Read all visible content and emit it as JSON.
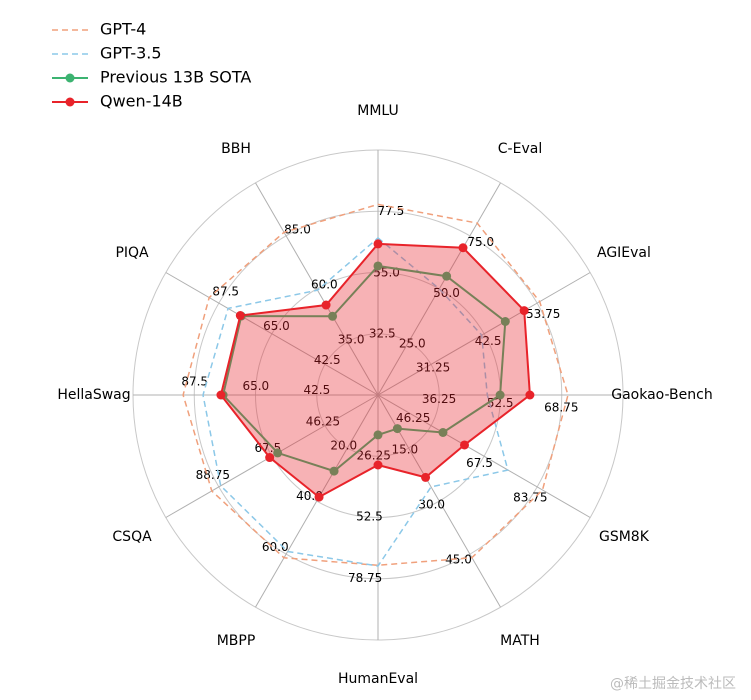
{
  "chart_data": {
    "type": "radar",
    "categories": [
      "MMLU",
      "C-Eval",
      "AGIEval",
      "Gaokao-Bench",
      "GSM8K",
      "MATH",
      "HumanEval",
      "MBPP",
      "CSQA",
      "HellaSwag",
      "PIQA",
      "BBH"
    ],
    "axes": [
      {
        "lim": [
          10,
          100
        ],
        "ticks": [
          32.5,
          {
            "value": 55,
            "label": "55.0"
          },
          77.5
        ]
      },
      {
        "lim": [
          0,
          100
        ],
        "ticks": [
          {
            "value": 25,
            "label": "25.0"
          },
          {
            "value": 50,
            "label": "50.0"
          },
          {
            "value": 75,
            "label": "75.0"
          }
        ]
      },
      {
        "lim": [
          20,
          65
        ],
        "ticks": [
          31.25,
          42.5,
          53.75
        ]
      },
      {
        "lim": [
          20,
          85
        ],
        "ticks": [
          36.25,
          52.5,
          68.75
        ]
      },
      {
        "lim": [
          35,
          100
        ],
        "ticks": [
          46.25,
          67.5,
          83.75
        ]
      },
      {
        "lim": [
          0,
          60
        ],
        "ticks": [
          {
            "value": 15,
            "label": "15.0"
          },
          {
            "value": 30,
            "label": "30.0"
          },
          {
            "value": 45,
            "label": "45.0"
          }
        ]
      },
      {
        "lim": [
          0,
          105
        ],
        "ticks": [
          26.25,
          52.5,
          78.75
        ]
      },
      {
        "lim": [
          0,
          80
        ],
        "ticks": [
          {
            "value": 20,
            "label": "20.0"
          },
          {
            "value": 40,
            "label": "40.0"
          },
          {
            "value": 60,
            "label": "60.0"
          }
        ]
      },
      {
        "lim": [
          25,
          110
        ],
        "ticks": [
          46.25,
          67.5,
          88.75
        ]
      },
      {
        "lim": [
          20,
          110
        ],
        "ticks": [
          42.5,
          {
            "value": 65,
            "label": "65.0"
          },
          87.5
        ]
      },
      {
        "lim": [
          20,
          110
        ],
        "ticks": [
          42.5,
          {
            "value": 65,
            "label": "65.0"
          },
          87.5
        ]
      },
      {
        "lim": [
          10,
          110
        ],
        "ticks": [
          {
            "value": 35,
            "label": "35.0"
          },
          {
            "value": 60,
            "label": "60.0"
          },
          {
            "value": 85,
            "label": "85.0"
          }
        ]
      }
    ],
    "series": [
      {
        "name": "GPT-4",
        "color": "#f0a07c",
        "linestyle": "dashed",
        "marker": false,
        "fill": false,
        "values": [
          80,
          81,
          54.3,
          70.4,
          85.4,
          46,
          73,
          61.4,
          91.6,
          91.6,
          91.6,
          86.7
        ]
      },
      {
        "name": "GPT-3.5",
        "color": "#8cc8e8",
        "linestyle": "dashed",
        "marker": false,
        "fill": false,
        "values": [
          67.7,
          50,
          42,
          49,
          74.8,
          26,
          73.3,
          59,
          88,
          84.3,
          83.6,
          59.4
        ]
      },
      {
        "name": "Previous 13B SOTA",
        "color": "#3cb371",
        "linestyle": "solid",
        "marker": true,
        "fill": false,
        "values": [
          57.4,
          56,
          47,
          52.4,
          54.9,
          9.5,
          17.1,
          28.7,
          65.2,
          76.9,
          78,
          47.1
        ]
      },
      {
        "name": "Qwen-14B",
        "color": "#e8232a",
        "linestyle": "solid",
        "marker": true,
        "fill": true,
        "values": [
          65.5,
          69.4,
          51,
          60.3,
          61.5,
          23.3,
          30,
          38.5,
          68.4,
          77.7,
          78.4,
          52.4
        ]
      }
    ],
    "legend": "upper left",
    "watermark": "@稀土掘金技术社区"
  }
}
